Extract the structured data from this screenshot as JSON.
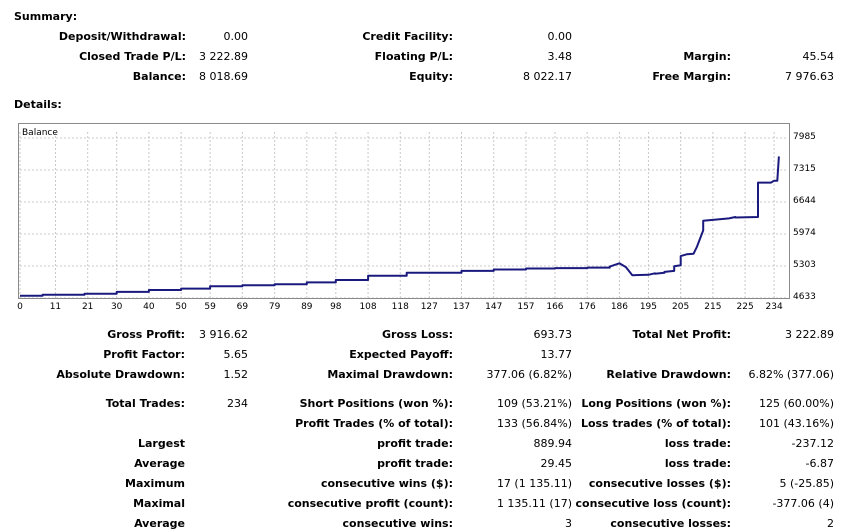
{
  "summary": {
    "heading": "Summary:",
    "rows": [
      [
        {
          "label": "Deposit/Withdrawal:",
          "value": "0.00"
        },
        {
          "label": "Credit Facility:",
          "value": "0.00"
        },
        {
          "label": "",
          "value": ""
        }
      ],
      [
        {
          "label": "Closed Trade P/L:",
          "value": "3 222.89"
        },
        {
          "label": "Floating P/L:",
          "value": "3.48"
        },
        {
          "label": "Margin:",
          "value": "45.54"
        }
      ],
      [
        {
          "label": "Balance:",
          "value": "8 018.69"
        },
        {
          "label": "Equity:",
          "value": "8 022.17"
        },
        {
          "label": "Free Margin:",
          "value": "7 976.63"
        }
      ]
    ]
  },
  "details": {
    "heading": "Details:",
    "stats": [
      [
        {
          "label": "Gross Profit:",
          "value": "3 916.62"
        },
        {
          "label": "Gross Loss:",
          "value": "693.73"
        },
        {
          "label": "Total Net Profit:",
          "value": "3 222.89"
        }
      ],
      [
        {
          "label": "Profit Factor:",
          "value": "5.65"
        },
        {
          "label": "Expected Payoff:",
          "value": "13.77"
        },
        {
          "label": "",
          "value": ""
        }
      ],
      [
        {
          "label": "Absolute Drawdown:",
          "value": "1.52"
        },
        {
          "label": "Maximal Drawdown:",
          "value": "377.06 (6.82%)"
        },
        {
          "label": "Relative Drawdown:",
          "value": "6.82% (377.06)"
        }
      ],
      [
        {
          "label": "Total Trades:",
          "value": "234"
        },
        {
          "label": "Short Positions (won %):",
          "value": "109 (53.21%)"
        },
        {
          "label": "Long Positions (won %):",
          "value": "125 (60.00%)"
        }
      ],
      [
        {
          "label": "",
          "value": ""
        },
        {
          "label": "Profit Trades (% of total):",
          "value": "133 (56.84%)"
        },
        {
          "label": "Loss trades (% of total):",
          "value": "101 (43.16%)"
        }
      ],
      [
        {
          "label": "Largest",
          "value": ""
        },
        {
          "label": "profit trade:",
          "value": "889.94"
        },
        {
          "label": "loss trade:",
          "value": "-237.12"
        }
      ],
      [
        {
          "label": "Average",
          "value": ""
        },
        {
          "label": "profit trade:",
          "value": "29.45"
        },
        {
          "label": "loss trade:",
          "value": "-6.87"
        }
      ],
      [
        {
          "label": "Maximum",
          "value": ""
        },
        {
          "label": "consecutive wins ($):",
          "value": "17 (1 135.11)"
        },
        {
          "label": "consecutive losses ($):",
          "value": "5 (-25.85)"
        }
      ],
      [
        {
          "label": "Maximal",
          "value": ""
        },
        {
          "label": "consecutive profit (count):",
          "value": "1 135.11 (17)"
        },
        {
          "label": "consecutive loss (count):",
          "value": "-377.06 (4)"
        }
      ],
      [
        {
          "label": "Average",
          "value": ""
        },
        {
          "label": "consecutive wins:",
          "value": "3"
        },
        {
          "label": "consecutive losses:",
          "value": "2"
        }
      ]
    ]
  },
  "chart_data": {
    "type": "line",
    "title": "Balance",
    "x_ticks": [
      "0",
      "11",
      "21",
      "30",
      "40",
      "50",
      "59",
      "69",
      "79",
      "89",
      "98",
      "108",
      "118",
      "127",
      "137",
      "147",
      "157",
      "166",
      "176",
      "186",
      "195",
      "205",
      "215",
      "225",
      "234"
    ],
    "y_ticks": [
      "7985",
      "7315",
      "6644",
      "5974",
      "5303",
      "4633"
    ],
    "xlim": [
      0,
      238
    ],
    "ylim": [
      4633,
      7985
    ],
    "grid": true,
    "line_color": "#1a1a7e",
    "grid_color": "#c8c8c8",
    "series": [
      {
        "x": [
          0,
          7,
          7,
          20,
          20,
          30,
          30,
          40,
          40,
          50,
          50,
          59,
          59,
          69,
          69,
          79,
          79,
          89,
          89,
          98,
          98,
          108,
          108,
          120,
          120,
          137,
          137,
          147,
          147,
          157,
          157,
          166,
          166,
          176,
          176,
          183,
          183,
          186,
          188,
          190,
          195,
          197,
          197,
          200,
          200,
          203,
          203,
          205,
          205,
          207,
          209,
          210,
          212,
          212,
          220,
          222,
          222,
          229,
          229,
          233,
          234,
          235,
          235.5
        ],
        "y": [
          4680,
          4680,
          4700,
          4700,
          4720,
          4720,
          4760,
          4760,
          4800,
          4800,
          4830,
          4830,
          4880,
          4880,
          4900,
          4900,
          4920,
          4920,
          4960,
          4960,
          5010,
          5010,
          5100,
          5100,
          5160,
          5160,
          5200,
          5200,
          5230,
          5230,
          5250,
          5250,
          5260,
          5260,
          5270,
          5270,
          5290,
          5360,
          5280,
          5110,
          5120,
          5150,
          5140,
          5160,
          5180,
          5200,
          5300,
          5320,
          5510,
          5550,
          5560,
          5700,
          6050,
          6250,
          6300,
          6330,
          6320,
          6330,
          7050,
          7050,
          7090,
          7090,
          7600
        ]
      }
    ]
  }
}
